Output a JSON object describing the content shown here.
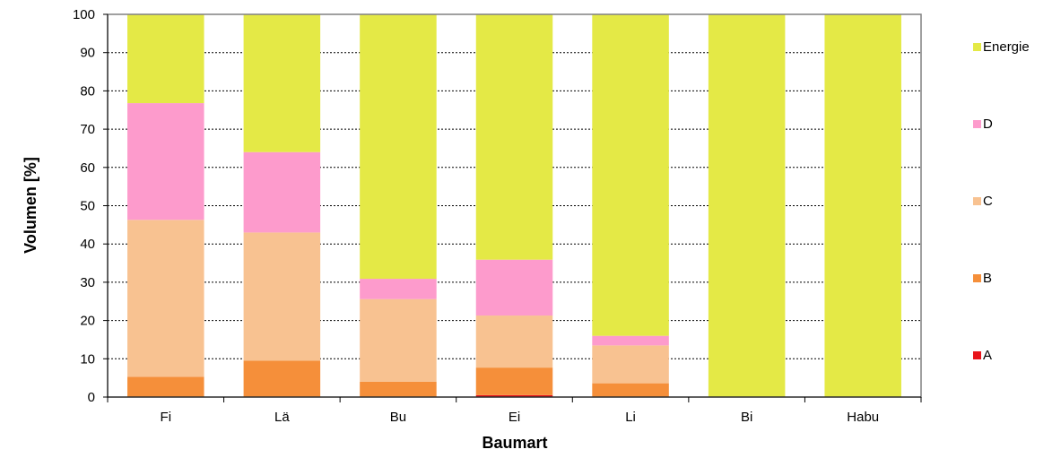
{
  "chart_data": {
    "type": "bar",
    "stacked": true,
    "categories": [
      "Fi",
      "Lä",
      "Bu",
      "Ei",
      "Li",
      "Bi",
      "Habu"
    ],
    "series": [
      {
        "name": "A",
        "color": "#e8141a",
        "values": [
          0,
          0,
          0,
          0.5,
          0,
          0,
          0
        ]
      },
      {
        "name": "B",
        "color": "#f58f3a",
        "values": [
          5.3,
          9.5,
          4.0,
          7.2,
          3.6,
          0,
          0
        ]
      },
      {
        "name": "C",
        "color": "#f8c291",
        "values": [
          41.0,
          33.5,
          21.6,
          13.6,
          9.9,
          0,
          0
        ]
      },
      {
        "name": "D",
        "color": "#fd9bcc",
        "values": [
          30.5,
          21.0,
          5.3,
          14.6,
          2.5,
          0,
          0
        ]
      },
      {
        "name": "Energie",
        "color": "#e4e946",
        "values": [
          23.2,
          36.0,
          69.1,
          64.1,
          84.0,
          100,
          100
        ]
      }
    ],
    "title": "",
    "xlabel": "Baumart",
    "ylabel": "Volumen [%]",
    "ylim": [
      0,
      100
    ],
    "yticks": [
      0,
      10,
      20,
      30,
      40,
      50,
      60,
      70,
      80,
      90,
      100
    ],
    "grid": true,
    "legend_position": "right",
    "legend_order": [
      "Energie",
      "D",
      "C",
      "B",
      "A"
    ]
  }
}
